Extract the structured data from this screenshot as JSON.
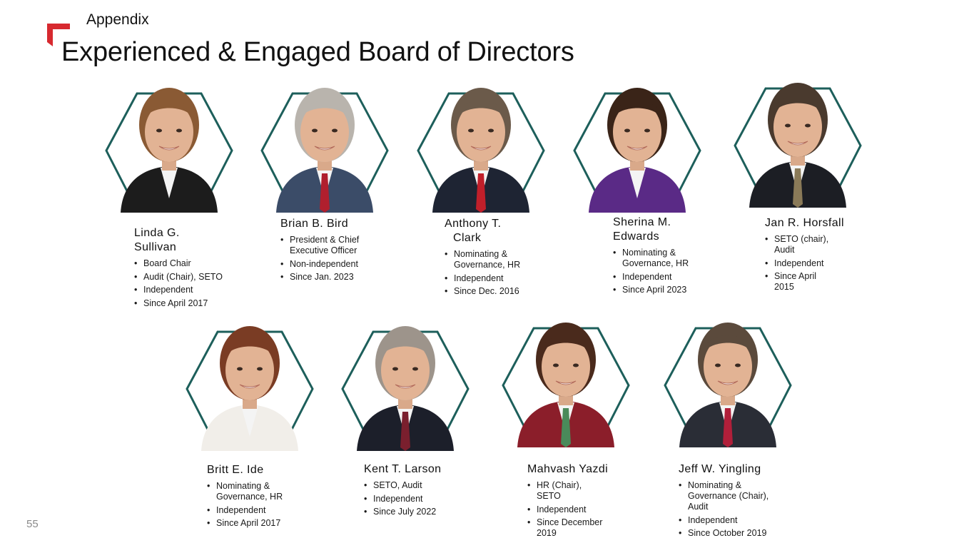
{
  "header": {
    "section": "Appendix",
    "title": "Experienced & Engaged Board of Directors"
  },
  "footer": {
    "page_number": "55"
  },
  "colors": {
    "hex_border": "#1d5f5b",
    "accent": "#d7292f"
  },
  "directors": [
    {
      "name": "Linda G. Sullivan",
      "roles": [
        "Board Chair",
        "Audit (Chair), SETO",
        "Independent",
        "Since April 2017"
      ],
      "hair": "#8a5a34",
      "suit": "#1c1c1c",
      "bg": "#d9d9d9",
      "tie": ""
    },
    {
      "name": "Brian B. Bird",
      "roles": [
        "President & Chief Executive Officer",
        "Non-independent",
        "Since Jan. 2023"
      ],
      "hair": "#b9b4ad",
      "suit": "#3b4c68",
      "bg": "#dcdcdc",
      "tie": "#b01f2e"
    },
    {
      "name": "Anthony T. Clark",
      "roles": [
        "Nominating & Governance, HR",
        "Independent",
        "Since Dec. 2016"
      ],
      "hair": "#6b5a4a",
      "suit": "#1e2433",
      "bg": "#e0e0e0",
      "tie": "#c11f2a"
    },
    {
      "name": "Sherina M. Edwards",
      "roles": [
        "Nominating & Governance, HR",
        "Independent",
        "Since April 2023"
      ],
      "hair": "#3a2418",
      "suit": "#5a2a86",
      "bg": "#dcdcdc",
      "tie": ""
    },
    {
      "name": "Jan R. Horsfall",
      "roles": [
        "SETO (chair), Audit",
        "Independent",
        "Since April 2015"
      ],
      "hair": "#4a3a2e",
      "suit": "#1c1e24",
      "bg": "#dedede",
      "tie": "#8a7a58"
    },
    {
      "name": "Britt E. Ide",
      "roles": [
        "Nominating & Governance, HR",
        "Independent",
        "Since April 2017"
      ],
      "hair": "#7a3c24",
      "suit": "#f1eee9",
      "bg": "#dcdcdc",
      "tie": ""
    },
    {
      "name": "Kent T. Larson",
      "roles": [
        "SETO, Audit",
        "Independent",
        "Since July 2022"
      ],
      "hair": "#9d948b",
      "suit": "#1c1f2a",
      "bg": "#dedede",
      "tie": "#7a1f2e"
    },
    {
      "name": "Mahvash Yazdi",
      "roles": [
        "HR (Chair), SETO",
        "Independent",
        "Since December 2019"
      ],
      "hair": "#4a2a1c",
      "suit": "#8b1e2a",
      "bg": "#dcdcdc",
      "tie": "#4a8a5a"
    },
    {
      "name": "Jeff W. Yingling",
      "roles": [
        "Nominating & Governance (Chair), Audit",
        "Independent",
        "Since October 2019"
      ],
      "hair": "#5b4a3c",
      "suit": "#2a2d36",
      "bg": "#dedede",
      "tie": "#b01f3a"
    }
  ]
}
